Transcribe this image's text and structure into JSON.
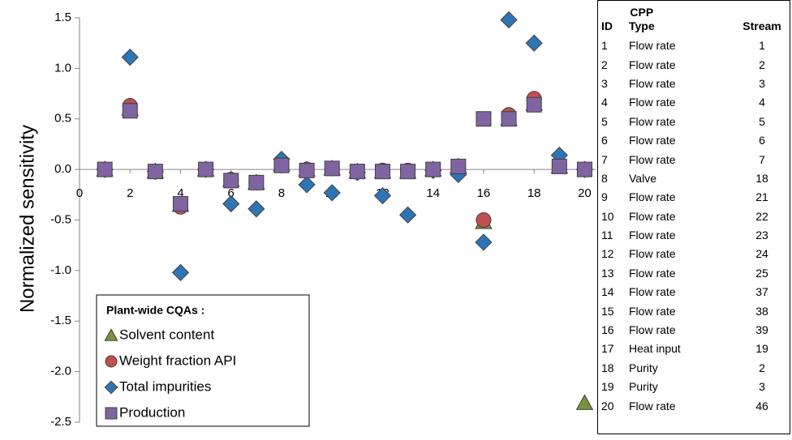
{
  "chart_data": {
    "type": "scatter",
    "ylabel": "Normalized sensitivity",
    "x": [
      1,
      2,
      3,
      4,
      5,
      6,
      7,
      8,
      9,
      10,
      11,
      12,
      13,
      14,
      15,
      16,
      17,
      18,
      19,
      20
    ],
    "xlim": [
      0,
      20.5
    ],
    "xticks": [
      0,
      2,
      4,
      6,
      8,
      10,
      12,
      14,
      16,
      18,
      20
    ],
    "ylim": [
      -2.5,
      1.5
    ],
    "yticks": [
      {
        "value": 1.5,
        "label": "1.5"
      },
      {
        "value": 1,
        "label": "1.0"
      },
      {
        "value": 0.5,
        "label": "0.5"
      },
      {
        "value": 0,
        "label": "0.0"
      },
      {
        "value": -0.5,
        "label": "-0.5"
      },
      {
        "value": -1,
        "label": "-1.0"
      },
      {
        "value": -1.5,
        "label": "-1.5"
      },
      {
        "value": -2,
        "label": "-2.0"
      },
      {
        "value": -2.5,
        "label": "-2.5"
      }
    ],
    "legend_title": "Plant-wide CQAs :",
    "legend_loc": "lower left",
    "series": [
      {
        "name": "Solvent content",
        "color": "#77933c",
        "marker": "triangle",
        "values": [
          0,
          0.6,
          -0.02,
          -0.35,
          0,
          -0.1,
          -0.13,
          0.05,
          0,
          0.01,
          -0.02,
          -0.02,
          -0.02,
          0,
          0.03,
          -0.52,
          0.5,
          0.65,
          0.03,
          -2.31
        ]
      },
      {
        "name": "Weight fraction API",
        "color": "#c0504d",
        "marker": "circle",
        "values": [
          0,
          0.63,
          -0.02,
          -0.37,
          0,
          -0.1,
          -0.13,
          0.05,
          0,
          0.01,
          -0.02,
          -0.01,
          -0.01,
          0,
          0.03,
          -0.5,
          0.54,
          0.7,
          0.04,
          0
        ]
      },
      {
        "name": "Total impurities",
        "color": "#2e75b6",
        "marker": "diamond",
        "values": [
          0,
          1.11,
          -0.02,
          -1.02,
          0,
          -0.34,
          -0.39,
          0.1,
          -0.15,
          -0.23,
          -0.03,
          -0.26,
          -0.45,
          -0.01,
          -0.05,
          -0.72,
          1.48,
          1.25,
          0.14,
          0
        ]
      },
      {
        "name": "Production",
        "color": "#8064a2",
        "marker": "square",
        "values": [
          0,
          0.58,
          -0.02,
          -0.34,
          0,
          -0.11,
          -0.13,
          0.04,
          -0.01,
          0.01,
          -0.02,
          -0.02,
          -0.02,
          0,
          0.03,
          0.5,
          0.5,
          0.64,
          0.03,
          0
        ]
      }
    ]
  },
  "table": {
    "columns": [
      "ID",
      "CPP Type",
      "Stream"
    ],
    "rows": [
      [
        1,
        "Flow rate",
        1
      ],
      [
        2,
        "Flow rate",
        2
      ],
      [
        3,
        "Flow rate",
        3
      ],
      [
        4,
        "Flow rate",
        4
      ],
      [
        5,
        "Flow rate",
        5
      ],
      [
        6,
        "Flow rate",
        6
      ],
      [
        7,
        "Flow rate",
        7
      ],
      [
        8,
        "Valve",
        18
      ],
      [
        9,
        "Flow rate",
        21
      ],
      [
        10,
        "Flow rate",
        22
      ],
      [
        11,
        "Flow rate",
        23
      ],
      [
        12,
        "Flow rate",
        24
      ],
      [
        13,
        "Flow rate",
        25
      ],
      [
        14,
        "Flow rate",
        37
      ],
      [
        15,
        "Flow rate",
        38
      ],
      [
        16,
        "Flow rate",
        39
      ],
      [
        17,
        "Heat input",
        19
      ],
      [
        18,
        "Purity",
        2
      ],
      [
        19,
        "Purity",
        3
      ],
      [
        20,
        "Flow rate",
        46
      ]
    ]
  }
}
